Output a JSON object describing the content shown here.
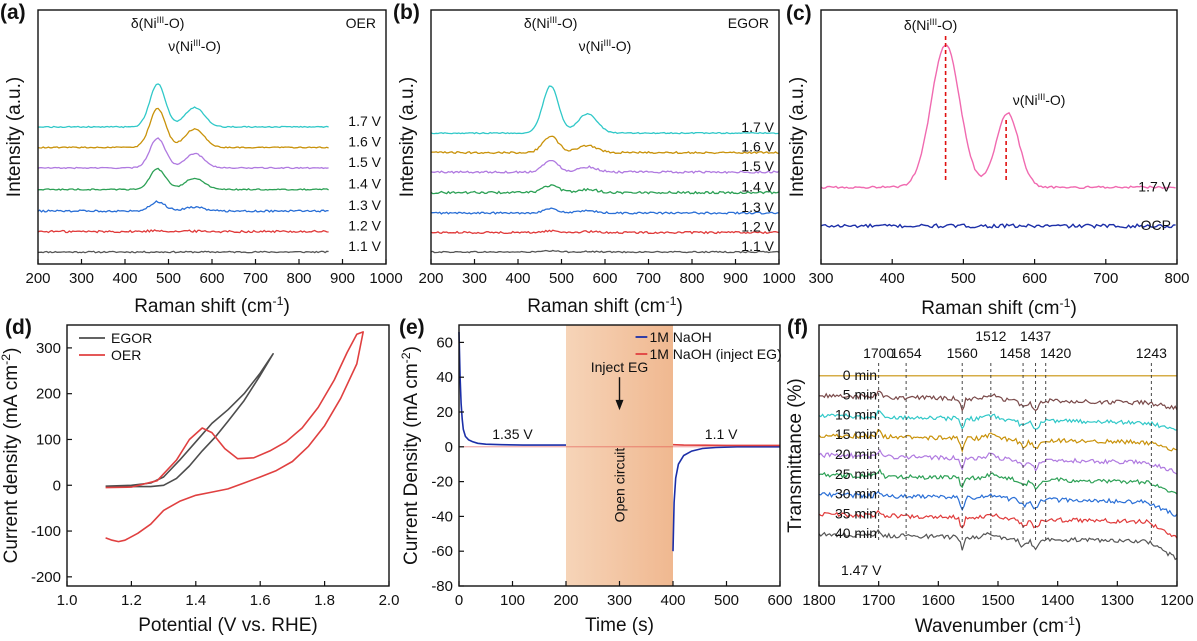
{
  "figure": {
    "background": "#ffffff",
    "axis_color": "#111111"
  },
  "chart_data": [
    {
      "id": "a",
      "panel_label": "(a)",
      "type": "line",
      "corner_label": "OER",
      "xlabel": "Raman shift (cm",
      "xlabel_sup": "-1",
      "xlabel_end": ")",
      "ylabel": "Intensity (a.u.)",
      "xlim": [
        200,
        1000
      ],
      "xticks": [
        200,
        300,
        400,
        500,
        600,
        700,
        800,
        900,
        1000
      ],
      "yticks": [],
      "data_end": 870,
      "annotations": [
        {
          "x": 475,
          "row": 0,
          "pre": "δ(Ni",
          "sup": "III",
          "post": "-O)"
        },
        {
          "x": 560,
          "row": 1,
          "pre": "ν(Ni",
          "sup": "III",
          "post": "-O)"
        }
      ],
      "series": [
        {
          "name": "1.1 V",
          "color": "#555555",
          "offset": 0.0,
          "peak1": 0.0,
          "peak2": 0.0,
          "noise": 0.4
        },
        {
          "name": "1.2 V",
          "color": "#e03a3a",
          "offset": 1.0,
          "peak1": 0.05,
          "peak2": 0.02,
          "noise": 0.6
        },
        {
          "name": "1.3 V",
          "color": "#2a6fd6",
          "offset": 2.0,
          "peak1": 0.45,
          "peak2": 0.2,
          "noise": 0.5
        },
        {
          "name": "1.4 V",
          "color": "#2ca055",
          "offset": 3.05,
          "peak1": 1.0,
          "peak2": 0.55,
          "noise": 0.35
        },
        {
          "name": "1.5 V",
          "color": "#b07ae0",
          "offset": 4.1,
          "peak1": 1.45,
          "peak2": 0.7,
          "noise": 0.3
        },
        {
          "name": "1.6 V",
          "color": "#c9920a",
          "offset": 5.1,
          "peak1": 1.9,
          "peak2": 0.9,
          "noise": 0.3
        },
        {
          "name": "1.7 V",
          "color": "#30c8c8",
          "offset": 6.1,
          "peak1": 2.1,
          "peak2": 0.95,
          "noise": 0.3
        }
      ]
    },
    {
      "id": "b",
      "panel_label": "(b)",
      "type": "line",
      "corner_label": "EGOR",
      "xlabel": "Raman shift (cm",
      "xlabel_sup": "-1",
      "xlabel_end": ")",
      "ylabel": "Intensity (a.u.)",
      "xlim": [
        200,
        1000
      ],
      "xticks": [
        200,
        300,
        400,
        500,
        600,
        700,
        800,
        900,
        1000
      ],
      "yticks": [],
      "data_end": 1000,
      "annotations": [
        {
          "x": 475,
          "row": 0,
          "pre": "δ(Ni",
          "sup": "III",
          "post": "-O)"
        },
        {
          "x": 600,
          "row": 1,
          "pre": "ν(Ni",
          "sup": "III",
          "post": "-O)"
        }
      ],
      "series": [
        {
          "name": "1.1 V",
          "color": "#555555",
          "offset": 0.0,
          "peak1": 0.05,
          "peak2": 0.02,
          "noise": 0.35
        },
        {
          "name": "1.2 V",
          "color": "#e03a3a",
          "offset": 0.95,
          "peak1": 0.08,
          "peak2": 0.04,
          "noise": 0.5
        },
        {
          "name": "1.3 V",
          "color": "#2a6fd6",
          "offset": 1.9,
          "peak1": 0.2,
          "peak2": 0.1,
          "noise": 0.5
        },
        {
          "name": "1.4 V",
          "color": "#2ca055",
          "offset": 2.9,
          "peak1": 0.35,
          "peak2": 0.15,
          "noise": 0.6
        },
        {
          "name": "1.5 V",
          "color": "#b07ae0",
          "offset": 3.9,
          "peak1": 0.55,
          "peak2": 0.25,
          "noise": 0.55
        },
        {
          "name": "1.6 V",
          "color": "#c9920a",
          "offset": 4.85,
          "peak1": 0.8,
          "peak2": 0.35,
          "noise": 0.5
        },
        {
          "name": "1.7 V",
          "color": "#30c8c8",
          "offset": 5.8,
          "peak1": 2.3,
          "peak2": 0.95,
          "noise": 0.3
        }
      ]
    },
    {
      "id": "c",
      "panel_label": "(c)",
      "type": "line",
      "xlabel": "Raman shift (cm",
      "xlabel_sup": "-1",
      "xlabel_end": ")",
      "ylabel": "Intensity (a.u.)",
      "xlim": [
        300,
        800
      ],
      "xticks": [
        300,
        400,
        500,
        600,
        700,
        800
      ],
      "yticks": [],
      "data_end": 800,
      "marker_lines": [
        475,
        560
      ],
      "annotations": [
        {
          "x": 475,
          "pre": "δ(Ni",
          "sup": "III",
          "post": "-O)"
        },
        {
          "x": 560,
          "pre": "ν(Ni",
          "sup": "III",
          "post": "-O)"
        }
      ],
      "series": [
        {
          "name": "OCP",
          "color": "#1c2fa8",
          "offset": 0.0,
          "peak1": 0.0,
          "peak2": 0.0,
          "noise": 0.2
        },
        {
          "name": "1.7 V",
          "color": "#f06ab0",
          "offset": 1.25,
          "peak1": 4.6,
          "peak2": 2.4,
          "noise": 0.12
        }
      ]
    },
    {
      "id": "d",
      "panel_label": "(d)",
      "type": "line",
      "xlabel": "Potential (V vs. RHE)",
      "ylabel": "Current density (mA cm",
      "ylabel_sup": "-2",
      "ylabel_end": ")",
      "xlim": [
        1.0,
        2.0
      ],
      "ylim": [
        -220,
        350
      ],
      "xticks": [
        1.0,
        1.2,
        1.4,
        1.6,
        1.8,
        2.0
      ],
      "yticks": [
        -200,
        -100,
        0,
        100,
        200,
        300
      ],
      "xtick_labels": [
        "1.0",
        "1.2",
        "1.4",
        "1.6",
        "1.8",
        "2.0"
      ],
      "legend": "top-left",
      "series": [
        {
          "name": "EGOR",
          "color": "#4d4d4d",
          "x": [
            1.12,
            1.2,
            1.26,
            1.3,
            1.34,
            1.38,
            1.42,
            1.46,
            1.5,
            1.55,
            1.6,
            1.64,
            1.6,
            1.55,
            1.5,
            1.45,
            1.4,
            1.35,
            1.3,
            1.26,
            1.2,
            1.12
          ],
          "y": [
            -2,
            -3,
            -3,
            0,
            15,
            42,
            75,
            105,
            140,
            185,
            240,
            287,
            245,
            200,
            165,
            135,
            95,
            55,
            18,
            5,
            0,
            -2
          ]
        },
        {
          "name": "OER",
          "color": "#e04040",
          "x": [
            1.12,
            1.2,
            1.28,
            1.34,
            1.38,
            1.42,
            1.45,
            1.49,
            1.53,
            1.58,
            1.63,
            1.68,
            1.73,
            1.78,
            1.83,
            1.87,
            1.9,
            1.92,
            1.9,
            1.85,
            1.8,
            1.75,
            1.7,
            1.65,
            1.6,
            1.55,
            1.5,
            1.45,
            1.4,
            1.35,
            1.3,
            1.26,
            1.22,
            1.18,
            1.16,
            1.14,
            1.12
          ],
          "y": [
            -5,
            -4,
            10,
            55,
            100,
            125,
            115,
            80,
            58,
            60,
            75,
            95,
            125,
            170,
            230,
            290,
            330,
            335,
            265,
            190,
            130,
            85,
            52,
            32,
            18,
            5,
            -8,
            -15,
            -22,
            -35,
            -55,
            -85,
            -105,
            -120,
            -123,
            -120,
            -115
          ]
        }
      ]
    },
    {
      "id": "e",
      "panel_label": "(e)",
      "type": "line",
      "xlabel": "Time (s)",
      "ylabel": "Current Density (mA cm",
      "ylabel_sup": "-2",
      "ylabel_end": ")",
      "xlim": [
        0,
        600
      ],
      "ylim": [
        -80,
        70
      ],
      "xticks": [
        0,
        100,
        200,
        300,
        400,
        500,
        600
      ],
      "yticks": [
        -80,
        -60,
        -40,
        -20,
        0,
        20,
        40,
        60
      ],
      "shaded_region": {
        "x0": 200,
        "x1": 400,
        "color": "#f3c6a4"
      },
      "texts": {
        "v1": "1.35 V",
        "v2": "1.1 V",
        "inject": "Inject EG",
        "open": "Open circuit"
      },
      "legend": "top-right",
      "series": [
        {
          "name": "1M NaOH",
          "color": "#1c2fa8",
          "x": [
            0,
            2,
            4,
            6,
            8,
            12,
            18,
            25,
            35,
            50,
            80,
            120,
            160,
            200,
            null,
            400,
            402,
            405,
            410,
            420,
            435,
            455,
            480,
            520,
            560,
            600
          ],
          "y": [
            66,
            40,
            25,
            16,
            10,
            6,
            4,
            3,
            2,
            1.5,
            1.2,
            1,
            1,
            1,
            null,
            -60,
            -32,
            -18,
            -10,
            -5,
            -2.5,
            -1,
            -0.4,
            0,
            0,
            0
          ]
        },
        {
          "name": "1M NaOH (inject EG)",
          "color": "#e04040",
          "x": [
            400,
            420,
            460,
            500,
            550,
            600
          ],
          "y": [
            1.2,
            1,
            0.9,
            0.8,
            0.8,
            0.8
          ]
        }
      ]
    },
    {
      "id": "f",
      "panel_label": "(f)",
      "type": "line",
      "voltage_label": "1.47 V",
      "xlabel": "Wavenumber (cm",
      "xlabel_sup": "-1",
      "xlabel_end": ")",
      "ylabel": "Transmittance (%)",
      "xlim": [
        1800,
        1200
      ],
      "xticks": [
        1800,
        1700,
        1600,
        1500,
        1400,
        1300,
        1200
      ],
      "yticks": [],
      "reference_lines": [
        1700,
        1654,
        1560,
        1512,
        1458,
        1437,
        1420,
        1243
      ],
      "series": [
        {
          "name": "0 min",
          "color": "#c9920a",
          "offset": 9.0
        },
        {
          "name": "5 min",
          "color": "#7a4a4a",
          "offset": 8.0
        },
        {
          "name": "10 min",
          "color": "#30c8c8",
          "offset": 7.0
        },
        {
          "name": "15 min",
          "color": "#c9920a",
          "offset": 6.0
        },
        {
          "name": "20 min",
          "color": "#b07ae0",
          "offset": 5.0
        },
        {
          "name": "25 min",
          "color": "#2ca055",
          "offset": 4.0
        },
        {
          "name": "30 min",
          "color": "#2a6fd6",
          "offset": 3.0
        },
        {
          "name": "35 min",
          "color": "#e03a3a",
          "offset": 2.0
        },
        {
          "name": "40 min",
          "color": "#555555",
          "offset": 1.0
        }
      ]
    }
  ]
}
